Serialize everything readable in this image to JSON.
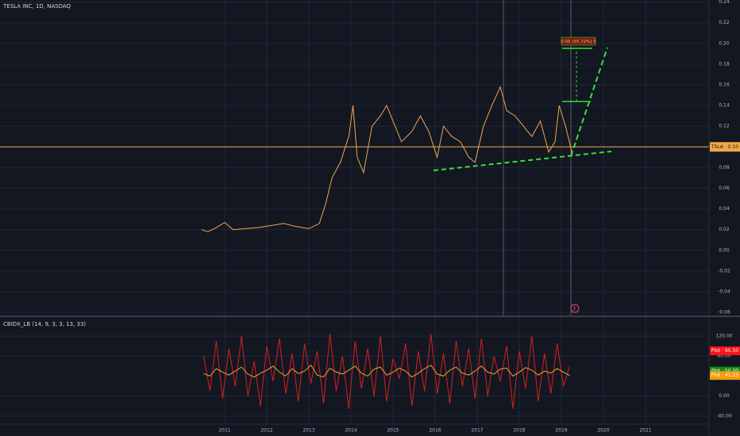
{
  "chart_data": [
    {
      "type": "line",
      "title": "TESLA INC, 1D, NASDAQ",
      "color": "#f0a848",
      "xlim": [
        2005.66,
        2022.51
      ],
      "xticks": [
        2011,
        2012,
        2013,
        2014,
        2015,
        2016,
        2017,
        2018,
        2019,
        2020,
        2021
      ],
      "ylim": [
        -0.063,
        0.242
      ],
      "yticks": [
        {
          "value": -0.06,
          "label": "-0.06"
        },
        {
          "value": -0.04,
          "label": "-0.04"
        },
        {
          "value": -0.02,
          "label": "-0.02"
        },
        {
          "value": 0,
          "label": "0.00"
        },
        {
          "value": 0.02,
          "label": "0.02"
        },
        {
          "value": 0.04,
          "label": "0.04"
        },
        {
          "value": 0.06,
          "label": "0.06"
        },
        {
          "value": 0.08,
          "label": "0.08"
        },
        {
          "value": 0.1,
          "label": "0.10"
        },
        {
          "value": 0.12,
          "label": "0.12"
        },
        {
          "value": 0.14,
          "label": "0.14"
        },
        {
          "value": 0.16,
          "label": "0.16"
        },
        {
          "value": 0.18,
          "label": "0.18"
        },
        {
          "value": 0.2,
          "label": "0.20"
        },
        {
          "value": 0.22,
          "label": "0.22"
        },
        {
          "value": 0.24,
          "label": "0.24"
        }
      ],
      "grid": true,
      "x": [
        2010.45,
        2010.6,
        2010.8,
        2011.0,
        2011.2,
        2011.5,
        2011.8,
        2012.1,
        2012.4,
        2012.7,
        2013.0,
        2013.25,
        2013.4,
        2013.55,
        2013.75,
        2013.95,
        2014.05,
        2014.15,
        2014.3,
        2014.5,
        2014.7,
        2014.85,
        2015.0,
        2015.2,
        2015.45,
        2015.65,
        2015.85,
        2016.05,
        2016.2,
        2016.4,
        2016.6,
        2016.8,
        2016.95,
        2017.15,
        2017.35,
        2017.55,
        2017.7,
        2017.9,
        2018.1,
        2018.3,
        2018.5,
        2018.7,
        2018.85,
        2018.95,
        2019.1,
        2019.25
      ],
      "values": [
        0.02,
        0.018,
        0.022,
        0.027,
        0.02,
        0.021,
        0.022,
        0.024,
        0.026,
        0.023,
        0.021,
        0.026,
        0.045,
        0.07,
        0.085,
        0.11,
        0.14,
        0.09,
        0.075,
        0.12,
        0.13,
        0.14,
        0.125,
        0.105,
        0.115,
        0.13,
        0.115,
        0.09,
        0.12,
        0.11,
        0.105,
        0.09,
        0.085,
        0.12,
        0.14,
        0.158,
        0.135,
        0.13,
        0.12,
        0.11,
        0.125,
        0.095,
        0.105,
        0.14,
        0.12,
        0.095
      ],
      "last_price": {
        "value": 0.1,
        "label": "TSLA · 0.10"
      },
      "annotation": "0.05 (35.72%) 5",
      "earnings_marker": "E"
    },
    {
      "type": "line",
      "title": "CBIDX_LB (14, 9, 3, 3, 13, 33)",
      "xlim": [
        2005.66,
        2022.51
      ],
      "ylim": [
        -56,
        158
      ],
      "yticks": [
        {
          "value": -40,
          "label": "-40.00"
        },
        {
          "value": 0,
          "label": "0.00"
        },
        {
          "value": 80,
          "label": "80.00"
        },
        {
          "value": 120,
          "label": "120.00"
        }
      ],
      "grid": true,
      "x": [
        2010.5,
        2010.65,
        2010.8,
        2010.95,
        2011.1,
        2011.25,
        2011.4,
        2011.55,
        2011.7,
        2011.85,
        2012,
        2012.15,
        2012.3,
        2012.45,
        2012.6,
        2012.75,
        2012.9,
        2013.05,
        2013.2,
        2013.35,
        2013.5,
        2013.65,
        2013.8,
        2013.95,
        2014.1,
        2014.25,
        2014.4,
        2014.55,
        2014.7,
        2014.85,
        2015,
        2015.15,
        2015.3,
        2015.45,
        2015.6,
        2015.75,
        2015.9,
        2016.05,
        2016.2,
        2016.35,
        2016.5,
        2016.65,
        2016.8,
        2016.95,
        2017.1,
        2017.25,
        2017.4,
        2017.55,
        2017.7,
        2017.85,
        2018,
        2018.15,
        2018.3,
        2018.45,
        2018.6,
        2018.75,
        2018.9,
        2019.05,
        2019.2
      ],
      "series": [
        {
          "color": "#d42020",
          "values": [
            80,
            10,
            110,
            -5,
            95,
            20,
            120,
            0,
            70,
            -20,
            100,
            30,
            115,
            5,
            85,
            -10,
            105,
            25,
            90,
            -15,
            125,
            10,
            80,
            -25,
            110,
            15,
            95,
            0,
            120,
            -10,
            75,
            35,
            105,
            -20,
            90,
            10,
            125,
            5,
            85,
            -15,
            110,
            20,
            95,
            -5,
            115,
            0,
            80,
            30,
            100,
            -25,
            90,
            15,
            120,
            -10,
            85,
            5,
            105,
            20,
            60
          ]
        },
        {
          "color": "#f0a030",
          "values": [
            45,
            40,
            55,
            48,
            42,
            50,
            58,
            44,
            38,
            46,
            52,
            60,
            48,
            40,
            55,
            45,
            50,
            62,
            42,
            38,
            56,
            48,
            44,
            52,
            60,
            46,
            40,
            54,
            58,
            42,
            48,
            56,
            50,
            38,
            46,
            55,
            62,
            44,
            40,
            52,
            58,
            46,
            42,
            50,
            60,
            48,
            44,
            54,
            56,
            40,
            48,
            57,
            52,
            42,
            50,
            46,
            55,
            48,
            41
          ]
        }
      ],
      "price_labels": [
        {
          "value": 90.5,
          "label": "Plot · 90.50",
          "color": "#f7141c"
        },
        {
          "value": 50,
          "label": "Plot · 50.00",
          "color": "#128a12"
        },
        {
          "value": 41.23,
          "label": "Plot · 41.23",
          "color": "#f59a0c"
        }
      ]
    }
  ]
}
